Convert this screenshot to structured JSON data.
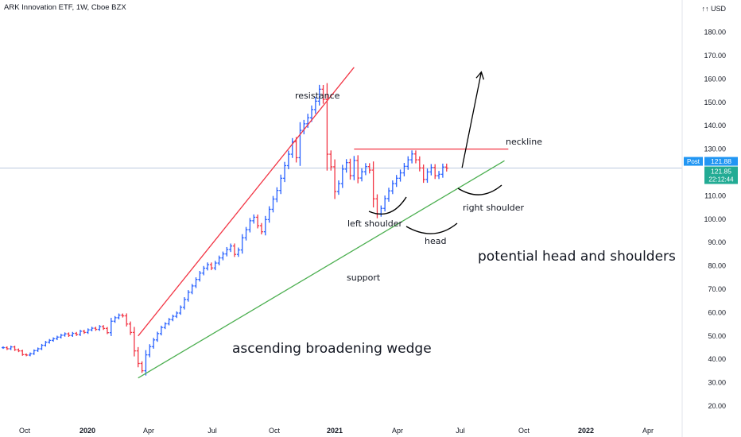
{
  "title": "ARK Innovation ETF, 1W, Cboe BZX",
  "currency": "USD",
  "currency_prefix": "↑↑",
  "price_labels": {
    "post_tag": "Post",
    "post_value": "121.88",
    "last_value": "121.85",
    "countdown": "22:12:44"
  },
  "colors": {
    "up": "#2962ff",
    "down": "#f23645",
    "resistance": "#f23645",
    "support": "#4caf50",
    "neckline": "#f23645",
    "post_tag": "#2196f3",
    "last_tag": "#22ab94",
    "price_line": "#b2c3d9"
  },
  "annotations": {
    "resistance": "resistance",
    "neckline": "neckline",
    "left_shoulder": "left shoulder",
    "head": "head",
    "right_shoulder": "right shoulder",
    "support": "support",
    "pattern": "potential head and shoulders",
    "wedge": "ascending broadening wedge"
  },
  "chart_data": {
    "type": "ohlc",
    "title": "ARK Innovation ETF, 1W, Cboe BZX",
    "y_axis": {
      "ticks": [
        "20.00",
        "30.00",
        "40.00",
        "50.00",
        "60.00",
        "70.00",
        "80.00",
        "90.00",
        "100.00",
        "110.00",
        "120.00",
        "130.00",
        "140.00",
        "150.00",
        "160.00",
        "170.00",
        "180.00"
      ],
      "range": [
        16,
        190
      ],
      "position": "right"
    },
    "x_axis": {
      "ticks": [
        "Oct",
        "2020",
        "Apr",
        "Jul",
        "Oct",
        "2021",
        "Apr",
        "Jul",
        "Oct",
        "2022",
        "Apr"
      ]
    },
    "grid": false,
    "weekly_closes": [
      45.0,
      44.5,
      45.3,
      44.1,
      43.6,
      42.0,
      41.8,
      42.4,
      43.7,
      44.5,
      46.0,
      47.3,
      48.1,
      48.8,
      49.5,
      50.3,
      50.9,
      50.2,
      51.1,
      50.6,
      52.0,
      51.5,
      52.6,
      53.3,
      52.8,
      54.0,
      53.2,
      51.4,
      56.3,
      57.8,
      58.9,
      58.6,
      55.1,
      51.5,
      43.6,
      38.2,
      35.1,
      41.9,
      45.4,
      48.3,
      51.0,
      53.6,
      55.2,
      57.0,
      58.4,
      59.8,
      62.3,
      65.6,
      68.7,
      71.4,
      74.2,
      76.9,
      79.0,
      80.5,
      79.1,
      81.2,
      83.4,
      85.1,
      87.0,
      88.5,
      84.9,
      86.8,
      92.0,
      95.5,
      99.3,
      100.8,
      97.2,
      94.6,
      99.8,
      104.2,
      108.6,
      112.3,
      117.5,
      122.9,
      127.8,
      133.1,
      126.3,
      138.0,
      140.8,
      143.4,
      146.9,
      150.5,
      155.6,
      151.2,
      127.8,
      122.4,
      111.8,
      115.2,
      121.4,
      124.2,
      118.6,
      125.1,
      117.6,
      120.3,
      122.5,
      121.0,
      108.7,
      102.3,
      104.6,
      108.8,
      112.1,
      115.2,
      117.5,
      119.8,
      122.6,
      125.4,
      127.9,
      125.4,
      121.9,
      117.0,
      120.2,
      122.1,
      118.6,
      119.2,
      122.3,
      121.85
    ],
    "lines": [
      {
        "name": "resistance",
        "x_week": [
          35,
          91
        ],
        "y": [
          50.0,
          165.0
        ]
      },
      {
        "name": "support",
        "x_week": [
          35,
          130
        ],
        "y": [
          32.0,
          125.0
        ]
      },
      {
        "name": "neckline",
        "x_week": [
          91,
          131
        ],
        "y": [
          130.0,
          130.0
        ]
      }
    ],
    "projection_arrow": {
      "from": {
        "x_week": 119,
        "y": 122.0
      },
      "to": {
        "x_week": 124,
        "y": 163.0
      }
    },
    "last_price": 121.85
  }
}
